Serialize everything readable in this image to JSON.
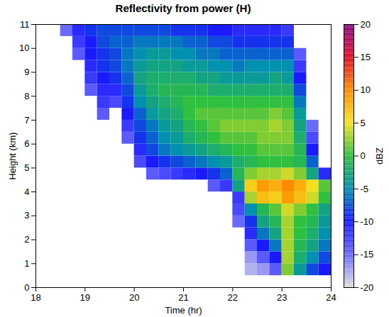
{
  "chart_data": {
    "type": "heatmap",
    "title": "Reflectivity from power (H)",
    "x_label": "Time (hr)",
    "y_label": "Height (km)",
    "xlim": [
      18,
      24
    ],
    "xticks": [
      18,
      19,
      20,
      21,
      22,
      23,
      24
    ],
    "ylim": [
      0,
      11
    ],
    "yticks": [
      0,
      1,
      2,
      3,
      4,
      5,
      6,
      7,
      8,
      9,
      10,
      11
    ],
    "x_bins": [
      18,
      18.25,
      18.5,
      18.75,
      19,
      19.25,
      19.5,
      19.75,
      20,
      20.25,
      20.5,
      20.75,
      21,
      21.25,
      21.5,
      21.75,
      22,
      22.25,
      22.5,
      22.75,
      23,
      23.25,
      23.5,
      23.75,
      24
    ],
    "y_bins": [
      0,
      0.5,
      1,
      1.5,
      2,
      2.5,
      3,
      3.5,
      4,
      4.5,
      5,
      5.5,
      6,
      6.5,
      7,
      7.5,
      8,
      8.5,
      9,
      9.5,
      10,
      10.5,
      11
    ],
    "values": [
      [
        null,
        null,
        null,
        null,
        null,
        null,
        null,
        null,
        null,
        null,
        null,
        null,
        null,
        null,
        null,
        null,
        null,
        null,
        null,
        null,
        null,
        null
      ],
      [
        null,
        null,
        null,
        null,
        null,
        null,
        null,
        null,
        null,
        null,
        null,
        null,
        null,
        null,
        null,
        null,
        null,
        null,
        null,
        null,
        null,
        null
      ],
      [
        null,
        null,
        null,
        null,
        null,
        null,
        null,
        null,
        null,
        null,
        null,
        null,
        null,
        null,
        null,
        null,
        null,
        null,
        null,
        null,
        null,
        -15
      ],
      [
        null,
        null,
        null,
        null,
        null,
        null,
        null,
        null,
        null,
        null,
        null,
        null,
        null,
        null,
        null,
        null,
        null,
        null,
        null,
        -14,
        -12,
        -11
      ],
      [
        null,
        null,
        null,
        null,
        null,
        null,
        null,
        null,
        null,
        null,
        null,
        null,
        null,
        null,
        null,
        null,
        -14,
        -12,
        -11,
        -10,
        -10,
        -9
      ],
      [
        null,
        null,
        null,
        null,
        null,
        null,
        null,
        null,
        null,
        null,
        null,
        null,
        null,
        null,
        -14,
        -12,
        -11,
        -10,
        -9,
        -9,
        -8,
        -8
      ],
      [
        null,
        null,
        null,
        null,
        null,
        null,
        null,
        null,
        null,
        null,
        null,
        null,
        null,
        null,
        null,
        -13,
        -11,
        -9,
        -8,
        -8,
        -7,
        -8
      ],
      [
        null,
        null,
        null,
        null,
        null,
        null,
        null,
        null,
        null,
        null,
        null,
        null,
        -14,
        -12,
        -10,
        -9,
        -8,
        -7,
        -6,
        -6,
        -7,
        -8
      ],
      [
        null,
        null,
        null,
        null,
        null,
        null,
        null,
        null,
        null,
        null,
        -13,
        -11,
        -9,
        -8,
        -7,
        -5,
        -4,
        -3,
        -4,
        -5,
        -6,
        -8
      ],
      [
        null,
        null,
        null,
        null,
        null,
        null,
        null,
        null,
        null,
        -14,
        -10,
        -8,
        -7,
        -6,
        -4,
        -3,
        -2,
        -2,
        -3,
        -4,
        -6,
        -8
      ],
      [
        null,
        null,
        null,
        null,
        null,
        null,
        null,
        null,
        null,
        -13,
        -9,
        -6,
        -5,
        -4,
        -3,
        -2,
        -1,
        -2,
        -3,
        -4,
        -6,
        -8
      ],
      [
        null,
        null,
        null,
        null,
        null,
        null,
        null,
        null,
        null,
        -12,
        -8,
        -5,
        -4,
        -3,
        -2,
        -1,
        -1,
        -2,
        -3,
        -5,
        -6,
        -9
      ],
      [
        null,
        null,
        null,
        null,
        null,
        null,
        null,
        null,
        null,
        -11,
        -7,
        -4,
        -2,
        -1,
        0,
        0,
        -1,
        -2,
        -4,
        -5,
        -7,
        -9
      ],
      [
        null,
        null,
        null,
        null,
        null,
        null,
        null,
        null,
        null,
        -10,
        -6,
        -3,
        -1,
        0,
        1,
        0,
        -1,
        -3,
        -4,
        -6,
        -7,
        -9
      ],
      [
        null,
        null,
        null,
        null,
        null,
        null,
        null,
        null,
        -14,
        -9,
        -5,
        -2,
        0,
        1,
        1,
        0,
        -2,
        -3,
        -5,
        -6,
        -8,
        -10
      ],
      [
        null,
        null,
        null,
        null,
        null,
        null,
        null,
        null,
        -12,
        -7,
        -4,
        -1,
        1,
        2,
        1,
        0,
        -2,
        -4,
        -5,
        -7,
        -8,
        -10
      ],
      [
        null,
        null,
        null,
        null,
        null,
        -15,
        -13,
        -12,
        -3,
        -1,
        -2,
        0,
        1,
        2,
        1,
        0,
        -2,
        -4,
        -6,
        -7,
        -9,
        -11
      ],
      [
        null,
        -18,
        -17,
        -14,
        -11,
        -9,
        -5,
        3,
        6,
        2,
        -1,
        0,
        1,
        2,
        1,
        0,
        -2,
        -4,
        -5,
        -7,
        -9,
        -11
      ],
      [
        null,
        -17,
        -14,
        -10,
        -6,
        -3,
        -1,
        7,
        9,
        3,
        0,
        1,
        2,
        2,
        1,
        0,
        -2,
        -4,
        -5,
        -7,
        -9,
        -11
      ],
      [
        null,
        -14,
        -10,
        -6,
        -3,
        -1,
        1,
        6,
        8,
        3,
        0,
        1,
        2,
        3,
        2,
        0,
        -2,
        -3,
        -5,
        -7,
        -9,
        -11
      ],
      [
        null,
        2,
        3,
        3,
        3,
        3,
        4,
        9,
        10,
        4,
        0,
        1,
        2,
        2,
        1,
        0,
        -2,
        -4,
        -5,
        -7,
        -9,
        -12
      ],
      [
        null,
        -4,
        -2,
        -1,
        0,
        0,
        2,
        7,
        8,
        2,
        -1,
        -1,
        -2,
        -3,
        -4,
        -6,
        -8,
        -10,
        -12,
        -14,
        null,
        null
      ],
      [
        null,
        -8,
        -5,
        -3,
        -2,
        -1,
        0,
        4,
        5,
        -3,
        -7,
        -10,
        -13,
        -15,
        null,
        null,
        null,
        null,
        null,
        null,
        null,
        null
      ],
      [
        null,
        -10,
        -8,
        -6,
        -5,
        -4,
        -3,
        0,
        1,
        -11,
        null,
        null,
        null,
        null,
        null,
        null,
        null,
        null,
        null,
        null,
        null,
        null
      ]
    ],
    "colorbar": {
      "label": "dBZ",
      "range": [
        -20,
        20
      ],
      "ticks": [
        -20,
        -15,
        -10,
        -5,
        0,
        5,
        10,
        15,
        20
      ],
      "colors": [
        "#e0e0e0",
        "#6a6aff",
        "#1a1aff",
        "#0090b0",
        "#30c040",
        "#f5e020",
        "#ff8c00",
        "#e0102a",
        "#8a0a8a"
      ]
    }
  }
}
